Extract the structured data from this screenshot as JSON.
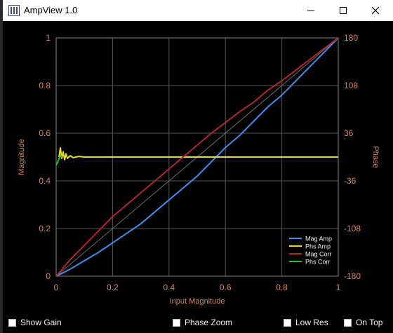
{
  "window": {
    "title": "AmpView 1.0"
  },
  "chart_data": {
    "type": "line",
    "xlabel": "Input Magnitude",
    "ylabel": "Magnitude",
    "y2label": "Phase",
    "xlim": [
      0,
      1
    ],
    "ylim": [
      0,
      1
    ],
    "y2lim": [
      -180,
      180
    ],
    "x_ticks": [
      "0",
      "0.2",
      "0.4",
      "0.6",
      "0.8",
      "1"
    ],
    "y_ticks": [
      "0",
      "0.2",
      "0.4",
      "0.6",
      "0.8",
      "1"
    ],
    "y2_ticks": [
      "-180",
      "-108",
      "-36",
      "36",
      "108",
      "180"
    ],
    "grid": true,
    "legend_position": "bottom-right",
    "series": [
      {
        "name": "Mag Amp",
        "color": "#3a8fea",
        "axis": "y",
        "x": [
          0,
          0.05,
          0.1,
          0.15,
          0.2,
          0.25,
          0.3,
          0.35,
          0.4,
          0.45,
          0.5,
          0.55,
          0.6,
          0.65,
          0.7,
          0.75,
          0.8,
          0.85,
          0.9,
          0.95,
          1
        ],
        "y": [
          0,
          0.03,
          0.065,
          0.1,
          0.14,
          0.18,
          0.22,
          0.27,
          0.32,
          0.37,
          0.42,
          0.48,
          0.54,
          0.59,
          0.65,
          0.71,
          0.76,
          0.82,
          0.88,
          0.94,
          1
        ]
      },
      {
        "name": "Phs Amp",
        "color": "#e8dc1e",
        "axis": "y2",
        "x": [
          0.01,
          0.015,
          0.02,
          0.025,
          0.03,
          0.035,
          0.04,
          0.05,
          0.06,
          0.08,
          0.1,
          0.2,
          0.4,
          0.6,
          0.8,
          1
        ],
        "y": [
          0,
          14,
          -2,
          8,
          -4,
          5,
          -2,
          2,
          -1,
          1,
          0,
          0,
          0,
          0,
          0,
          0
        ]
      },
      {
        "name": "Mag Corr",
        "color": "#b0252b",
        "axis": "y",
        "x": [
          0,
          0.05,
          0.1,
          0.15,
          0.2,
          0.25,
          0.3,
          0.35,
          0.4,
          0.45,
          0.5,
          0.55,
          0.6,
          0.65,
          0.7,
          0.75,
          0.8,
          0.85,
          0.9,
          0.95,
          1
        ],
        "y": [
          0,
          0.07,
          0.13,
          0.19,
          0.25,
          0.3,
          0.35,
          0.4,
          0.45,
          0.5,
          0.55,
          0.6,
          0.645,
          0.69,
          0.73,
          0.78,
          0.82,
          0.865,
          0.91,
          0.955,
          1
        ]
      },
      {
        "name": "Phs Corr",
        "color": "#22c23a",
        "axis": "y2",
        "x": [
          0,
          0.005,
          0.01,
          0.015,
          0.02
        ],
        "y": [
          -12,
          -8,
          -3,
          2,
          0
        ]
      }
    ],
    "reference_line": {
      "x": [
        0,
        1
      ],
      "y": [
        0,
        1
      ]
    }
  },
  "controls": {
    "show_gain": "Show Gain",
    "phase_zoom": "Phase Zoom",
    "low_res": "Low Res",
    "on_top": "On Top"
  }
}
